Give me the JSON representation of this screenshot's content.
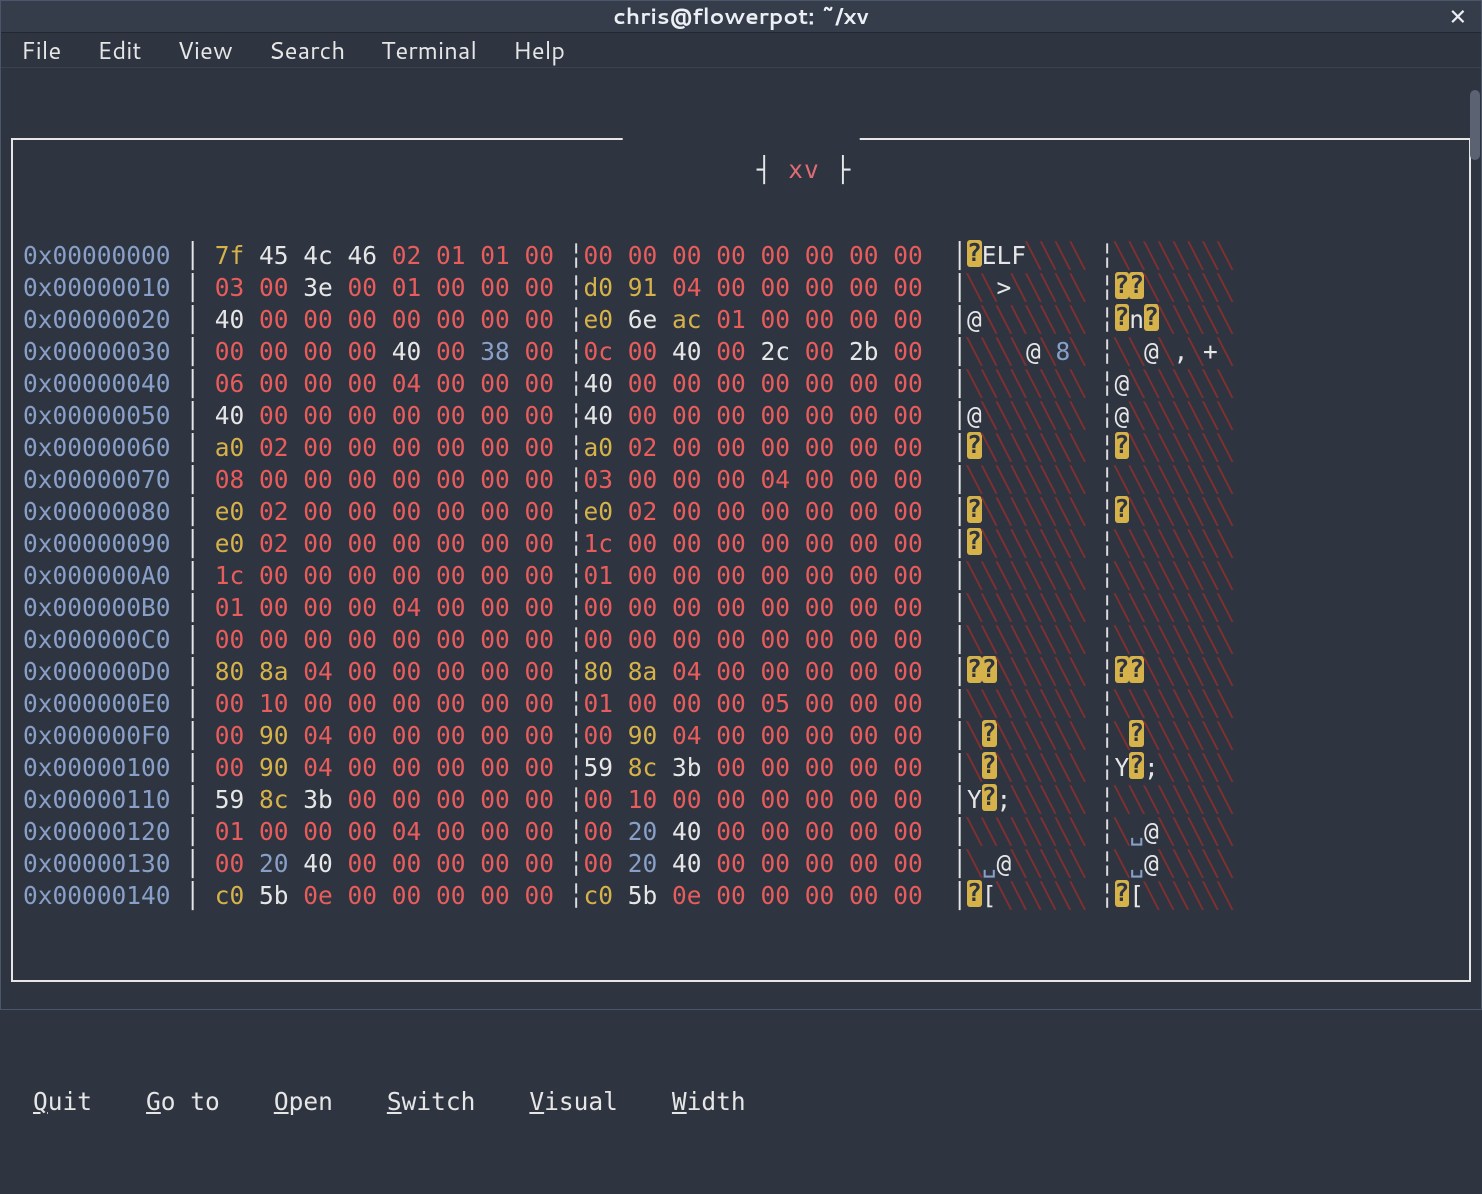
{
  "window": {
    "title": "chris@flowerpot: ~/xv"
  },
  "menu": {
    "items": [
      "File",
      "Edit",
      "View",
      "Search",
      "Terminal",
      "Help"
    ]
  },
  "view_label": "xv",
  "footer": {
    "items": [
      "Quit",
      "Go to",
      "Open",
      "Switch",
      "Visual",
      "Width"
    ]
  },
  "colors": {
    "bg": "#2e3440",
    "titlebar": "#353c4a",
    "border": "#e6e6e6",
    "addr": "#88a0c8",
    "red": "#e85c5c",
    "yellow": "#d6b24a",
    "blue": "#88a0c8",
    "ascii_dim": "#803030"
  },
  "byte_colors": {
    "00": "r",
    "printable_ascii_min": 32,
    "printable_ascii_max": 126
  },
  "hex": {
    "cols": 16,
    "rows": [
      {
        "a": "0x00000000",
        "b": [
          "7f",
          "45",
          "4c",
          "46",
          "02",
          "01",
          "01",
          "00",
          "00",
          "00",
          "00",
          "00",
          "00",
          "00",
          "00",
          "00"
        ]
      },
      {
        "a": "0x00000010",
        "b": [
          "03",
          "00",
          "3e",
          "00",
          "01",
          "00",
          "00",
          "00",
          "d0",
          "91",
          "04",
          "00",
          "00",
          "00",
          "00",
          "00"
        ]
      },
      {
        "a": "0x00000020",
        "b": [
          "40",
          "00",
          "00",
          "00",
          "00",
          "00",
          "00",
          "00",
          "e0",
          "6e",
          "ac",
          "01",
          "00",
          "00",
          "00",
          "00"
        ]
      },
      {
        "a": "0x00000030",
        "b": [
          "00",
          "00",
          "00",
          "00",
          "40",
          "00",
          "38",
          "00",
          "0c",
          "00",
          "40",
          "00",
          "2c",
          "00",
          "2b",
          "00"
        ]
      },
      {
        "a": "0x00000040",
        "b": [
          "06",
          "00",
          "00",
          "00",
          "04",
          "00",
          "00",
          "00",
          "40",
          "00",
          "00",
          "00",
          "00",
          "00",
          "00",
          "00"
        ]
      },
      {
        "a": "0x00000050",
        "b": [
          "40",
          "00",
          "00",
          "00",
          "00",
          "00",
          "00",
          "00",
          "40",
          "00",
          "00",
          "00",
          "00",
          "00",
          "00",
          "00"
        ]
      },
      {
        "a": "0x00000060",
        "b": [
          "a0",
          "02",
          "00",
          "00",
          "00",
          "00",
          "00",
          "00",
          "a0",
          "02",
          "00",
          "00",
          "00",
          "00",
          "00",
          "00"
        ]
      },
      {
        "a": "0x00000070",
        "b": [
          "08",
          "00",
          "00",
          "00",
          "00",
          "00",
          "00",
          "00",
          "03",
          "00",
          "00",
          "00",
          "04",
          "00",
          "00",
          "00"
        ]
      },
      {
        "a": "0x00000080",
        "b": [
          "e0",
          "02",
          "00",
          "00",
          "00",
          "00",
          "00",
          "00",
          "e0",
          "02",
          "00",
          "00",
          "00",
          "00",
          "00",
          "00"
        ]
      },
      {
        "a": "0x00000090",
        "b": [
          "e0",
          "02",
          "00",
          "00",
          "00",
          "00",
          "00",
          "00",
          "1c",
          "00",
          "00",
          "00",
          "00",
          "00",
          "00",
          "00"
        ]
      },
      {
        "a": "0x000000A0",
        "b": [
          "1c",
          "00",
          "00",
          "00",
          "00",
          "00",
          "00",
          "00",
          "01",
          "00",
          "00",
          "00",
          "00",
          "00",
          "00",
          "00"
        ]
      },
      {
        "a": "0x000000B0",
        "b": [
          "01",
          "00",
          "00",
          "00",
          "04",
          "00",
          "00",
          "00",
          "00",
          "00",
          "00",
          "00",
          "00",
          "00",
          "00",
          "00"
        ]
      },
      {
        "a": "0x000000C0",
        "b": [
          "00",
          "00",
          "00",
          "00",
          "00",
          "00",
          "00",
          "00",
          "00",
          "00",
          "00",
          "00",
          "00",
          "00",
          "00",
          "00"
        ]
      },
      {
        "a": "0x000000D0",
        "b": [
          "80",
          "8a",
          "04",
          "00",
          "00",
          "00",
          "00",
          "00",
          "80",
          "8a",
          "04",
          "00",
          "00",
          "00",
          "00",
          "00"
        ]
      },
      {
        "a": "0x000000E0",
        "b": [
          "00",
          "10",
          "00",
          "00",
          "00",
          "00",
          "00",
          "00",
          "01",
          "00",
          "00",
          "00",
          "05",
          "00",
          "00",
          "00"
        ]
      },
      {
        "a": "0x000000F0",
        "b": [
          "00",
          "90",
          "04",
          "00",
          "00",
          "00",
          "00",
          "00",
          "00",
          "90",
          "04",
          "00",
          "00",
          "00",
          "00",
          "00"
        ]
      },
      {
        "a": "0x00000100",
        "b": [
          "00",
          "90",
          "04",
          "00",
          "00",
          "00",
          "00",
          "00",
          "59",
          "8c",
          "3b",
          "00",
          "00",
          "00",
          "00",
          "00"
        ]
      },
      {
        "a": "0x00000110",
        "b": [
          "59",
          "8c",
          "3b",
          "00",
          "00",
          "00",
          "00",
          "00",
          "00",
          "10",
          "00",
          "00",
          "00",
          "00",
          "00",
          "00"
        ]
      },
      {
        "a": "0x00000120",
        "b": [
          "01",
          "00",
          "00",
          "00",
          "04",
          "00",
          "00",
          "00",
          "00",
          "20",
          "40",
          "00",
          "00",
          "00",
          "00",
          "00"
        ]
      },
      {
        "a": "0x00000130",
        "b": [
          "00",
          "20",
          "40",
          "00",
          "00",
          "00",
          "00",
          "00",
          "00",
          "20",
          "40",
          "00",
          "00",
          "00",
          "00",
          "00"
        ]
      },
      {
        "a": "0x00000140",
        "b": [
          "c0",
          "5b",
          "0e",
          "00",
          "00",
          "00",
          "00",
          "00",
          "c0",
          "5b",
          "0e",
          "00",
          "00",
          "00",
          "00",
          "00"
        ]
      }
    ]
  }
}
